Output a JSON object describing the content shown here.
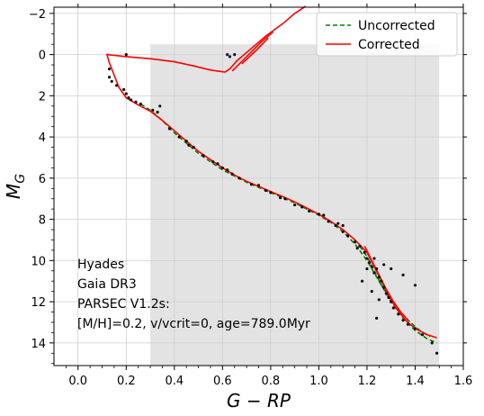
{
  "chart_data": {
    "type": "scatter",
    "xlabel": "G − RP",
    "ylabel_main": "M",
    "ylabel_sub": "G",
    "xlim": [
      -0.1,
      1.6
    ],
    "ylim": [
      15.1,
      -2.3
    ],
    "y_inverted": true,
    "grid": true,
    "xticks": [
      0.0,
      0.2,
      0.4,
      0.6,
      0.8,
      1.0,
      1.2,
      1.4,
      1.6
    ],
    "xtick_labels": [
      "0.0",
      "0.2",
      "0.4",
      "0.6",
      "0.8",
      "1.0",
      "1.2",
      "1.4",
      "1.6"
    ],
    "yticks": [
      -2,
      0,
      2,
      4,
      6,
      8,
      10,
      12,
      14
    ],
    "ytick_labels": [
      "−2",
      "0",
      "2",
      "4",
      "6",
      "8",
      "10",
      "12",
      "14"
    ],
    "shaded_region": {
      "x": [
        0.3,
        1.5
      ],
      "y": [
        -0.5,
        15.1
      ],
      "color": "#e3e3e3"
    },
    "legend": {
      "placement": "top-right",
      "entries": [
        {
          "label": "Uncorrected",
          "color": "#008000",
          "style": "dashed"
        },
        {
          "label": "Corrected",
          "color": "#ff0000",
          "style": "solid"
        }
      ]
    },
    "annotations": [
      "Hyades",
      "Gaia DR3",
      "PARSEC V1.2s:",
      "[M/H]=0.2, v/vcrit=0, age=789.0Myr"
    ],
    "series": [
      {
        "name": "Uncorrected",
        "color": "#008000",
        "style": "dashed",
        "points": [
          [
            0.26,
            2.4
          ],
          [
            0.3,
            2.7
          ],
          [
            0.35,
            3.2
          ],
          [
            0.4,
            3.8
          ],
          [
            0.45,
            4.3
          ],
          [
            0.5,
            4.8
          ],
          [
            0.55,
            5.2
          ],
          [
            0.6,
            5.6
          ],
          [
            0.65,
            5.9
          ],
          [
            0.7,
            6.2
          ],
          [
            0.75,
            6.45
          ],
          [
            0.8,
            6.7
          ],
          [
            0.85,
            6.95
          ],
          [
            0.9,
            7.2
          ],
          [
            0.95,
            7.5
          ],
          [
            1.0,
            7.8
          ],
          [
            1.05,
            8.15
          ],
          [
            1.1,
            8.6
          ],
          [
            1.15,
            9.2
          ],
          [
            1.2,
            10.0
          ],
          [
            1.25,
            11.0
          ],
          [
            1.3,
            12.0
          ],
          [
            1.35,
            12.8
          ],
          [
            1.4,
            13.4
          ],
          [
            1.45,
            13.8
          ],
          [
            1.49,
            14.0
          ]
        ]
      },
      {
        "name": "Uncorrected",
        "color": "#008000",
        "style": "dashed",
        "points": [
          [
            1.17,
            9.3
          ],
          [
            1.2,
            9.8
          ],
          [
            1.23,
            10.5
          ],
          [
            1.26,
            11.2
          ],
          [
            1.3,
            11.9
          ],
          [
            1.34,
            12.5
          ],
          [
            1.38,
            13.0
          ],
          [
            1.42,
            13.4
          ],
          [
            1.46,
            13.7
          ]
        ]
      },
      {
        "name": "Corrected",
        "color": "#ff0000",
        "style": "solid",
        "points": [
          [
            0.945,
            -2.35
          ],
          [
            0.9,
            -2.0
          ],
          [
            0.85,
            -1.5
          ],
          [
            0.78,
            -0.9
          ],
          [
            0.72,
            -0.3
          ],
          [
            0.66,
            0.3
          ],
          [
            0.63,
            0.7
          ],
          [
            0.61,
            0.85
          ],
          [
            0.55,
            0.75
          ],
          [
            0.48,
            0.55
          ],
          [
            0.4,
            0.35
          ],
          [
            0.3,
            0.2
          ],
          [
            0.2,
            0.1
          ],
          [
            0.12,
            0.0
          ],
          [
            0.13,
            0.4
          ],
          [
            0.15,
            1.0
          ],
          [
            0.17,
            1.6
          ],
          [
            0.2,
            2.1
          ],
          [
            0.25,
            2.45
          ],
          [
            0.3,
            2.75
          ],
          [
            0.35,
            3.2
          ],
          [
            0.4,
            3.7
          ],
          [
            0.45,
            4.2
          ],
          [
            0.5,
            4.7
          ],
          [
            0.55,
            5.1
          ],
          [
            0.6,
            5.5
          ],
          [
            0.65,
            5.85
          ],
          [
            0.7,
            6.15
          ],
          [
            0.75,
            6.4
          ],
          [
            0.8,
            6.65
          ],
          [
            0.85,
            6.9
          ],
          [
            0.9,
            7.15
          ],
          [
            0.95,
            7.45
          ],
          [
            1.0,
            7.75
          ],
          [
            1.05,
            8.1
          ],
          [
            1.1,
            8.5
          ],
          [
            1.15,
            9.0
          ],
          [
            1.2,
            9.6
          ],
          [
            1.23,
            10.3
          ],
          [
            1.26,
            11.0
          ],
          [
            1.29,
            11.7
          ],
          [
            1.32,
            12.3
          ],
          [
            1.36,
            12.9
          ],
          [
            1.4,
            13.3
          ],
          [
            1.45,
            13.6
          ],
          [
            1.49,
            13.75
          ]
        ]
      },
      {
        "name": "Corrected",
        "color": "#ff0000",
        "style": "solid",
        "points": [
          [
            0.64,
            0.8
          ],
          [
            0.7,
            0.1
          ],
          [
            0.76,
            -0.6
          ],
          [
            0.81,
            -1.1
          ]
        ]
      },
      {
        "name": "Corrected",
        "color": "#ff0000",
        "style": "solid",
        "points": [
          [
            0.68,
            0.45
          ],
          [
            0.74,
            -0.2
          ],
          [
            0.79,
            -0.8
          ]
        ]
      },
      {
        "name": "Corrected",
        "color": "#ff0000",
        "style": "solid",
        "points": [
          [
            1.19,
            9.3
          ],
          [
            1.22,
            10.0
          ],
          [
            1.25,
            10.7
          ],
          [
            1.28,
            11.4
          ],
          [
            1.31,
            12.0
          ],
          [
            1.34,
            12.5
          ],
          [
            1.37,
            12.9
          ]
        ]
      }
    ],
    "stars": [
      [
        0.13,
        0.7
      ],
      [
        0.13,
        1.1
      ],
      [
        0.14,
        1.3
      ],
      [
        0.16,
        1.5
      ],
      [
        0.19,
        1.7
      ],
      [
        0.2,
        1.9
      ],
      [
        0.21,
        2.1
      ],
      [
        0.22,
        2.2
      ],
      [
        0.24,
        2.3
      ],
      [
        0.26,
        2.4
      ],
      [
        0.2,
        0.0
      ],
      [
        0.31,
        2.7
      ],
      [
        0.33,
        2.8
      ],
      [
        0.34,
        2.5
      ],
      [
        0.38,
        3.6
      ],
      [
        0.42,
        4.0
      ],
      [
        0.45,
        4.2
      ],
      [
        0.46,
        4.4
      ],
      [
        0.48,
        4.5
      ],
      [
        0.52,
        4.9
      ],
      [
        0.56,
        5.2
      ],
      [
        0.58,
        5.3
      ],
      [
        0.6,
        5.5
      ],
      [
        0.62,
        5.6
      ],
      [
        0.64,
        5.8
      ],
      [
        0.67,
        6.0
      ],
      [
        0.72,
        6.3
      ],
      [
        0.75,
        6.35
      ],
      [
        0.78,
        6.6
      ],
      [
        0.8,
        6.7
      ],
      [
        0.84,
        6.95
      ],
      [
        0.86,
        7.0
      ],
      [
        0.9,
        7.3
      ],
      [
        0.93,
        7.4
      ],
      [
        0.96,
        7.6
      ],
      [
        1.0,
        7.75
      ],
      [
        1.02,
        7.8
      ],
      [
        1.04,
        8.1
      ],
      [
        1.07,
        8.3
      ],
      [
        1.1,
        8.6
      ],
      [
        1.12,
        8.8
      ],
      [
        1.15,
        9.1
      ],
      [
        1.17,
        9.3
      ],
      [
        1.19,
        9.6
      ],
      [
        1.2,
        9.9
      ],
      [
        1.21,
        10.1
      ],
      [
        1.22,
        10.3
      ],
      [
        1.23,
        10.6
      ],
      [
        1.24,
        10.4
      ],
      [
        1.25,
        10.8
      ],
      [
        1.26,
        11.0
      ],
      [
        1.27,
        11.3
      ],
      [
        1.28,
        11.6
      ],
      [
        1.29,
        11.8
      ],
      [
        1.3,
        12.0
      ],
      [
        1.31,
        12.3
      ],
      [
        1.33,
        12.6
      ],
      [
        1.35,
        12.9
      ],
      [
        1.37,
        13.1
      ],
      [
        1.4,
        13.3
      ],
      [
        1.43,
        13.6
      ],
      [
        1.47,
        14.0
      ],
      [
        1.49,
        14.5
      ],
      [
        1.3,
        10.4
      ],
      [
        1.35,
        10.7
      ],
      [
        1.4,
        11.2
      ],
      [
        1.23,
        9.9
      ],
      [
        1.18,
        11.0
      ],
      [
        1.16,
        9.4
      ],
      [
        1.08,
        8.2
      ],
      [
        1.1,
        8.3
      ],
      [
        1.2,
        10.4
      ],
      [
        1.25,
        11.9
      ],
      [
        1.27,
        10.2
      ],
      [
        1.24,
        12.8
      ],
      [
        1.22,
        11.5
      ],
      [
        0.63,
        0.1
      ],
      [
        0.62,
        0.0
      ],
      [
        0.65,
        0.0
      ]
    ]
  }
}
